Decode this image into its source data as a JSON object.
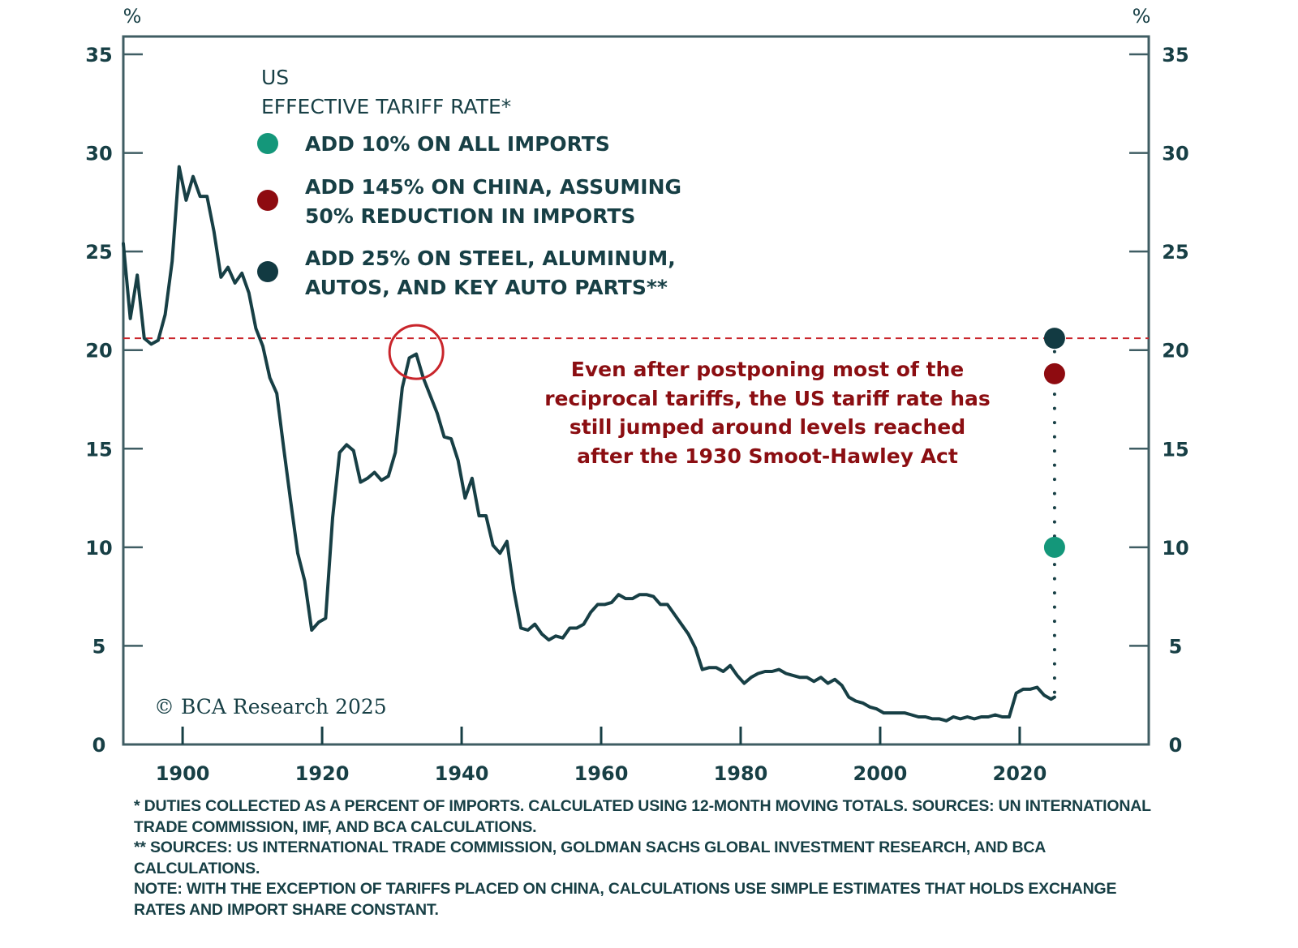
{
  "chart_data": {
    "type": "line",
    "title": "US EFFECTIVE TARIFF RATE*",
    "title_lines": [
      "US",
      "EFFECTIVE TARIFF RATE*"
    ],
    "ylabel_left": "%",
    "ylabel_right": "%",
    "xlabel": "",
    "xlim": [
      1891.5,
      2038.5
    ],
    "ylim": [
      0,
      35
    ],
    "x_ticks": [
      1900,
      1920,
      1940,
      1960,
      1980,
      2000,
      2020
    ],
    "x_tick_labels": [
      "1900",
      "1920",
      "1940",
      "1960",
      "1980",
      "2000",
      "2020"
    ],
    "y_ticks": [
      0,
      5,
      10,
      15,
      20,
      25,
      30,
      35
    ],
    "y_tick_labels": [
      "0",
      "5",
      "10",
      "15",
      "20",
      "25",
      "30",
      "35"
    ],
    "grid": false,
    "legend_position": "top-left",
    "series": [
      {
        "name": "US effective tariff rate",
        "color": "#173f45",
        "points": [
          [
            1891.5,
            25.4
          ],
          [
            1892.5,
            21.6
          ],
          [
            1893.5,
            23.8
          ],
          [
            1894.5,
            20.6
          ],
          [
            1895.5,
            20.3
          ],
          [
            1896.5,
            20.5
          ],
          [
            1897.5,
            21.8
          ],
          [
            1898.5,
            24.5
          ],
          [
            1899.5,
            29.3
          ],
          [
            1900.5,
            27.6
          ],
          [
            1901.5,
            28.8
          ],
          [
            1902.5,
            27.8
          ],
          [
            1903.5,
            27.8
          ],
          [
            1904.5,
            26.0
          ],
          [
            1905.5,
            23.7
          ],
          [
            1906.5,
            24.2
          ],
          [
            1907.5,
            23.4
          ],
          [
            1908.5,
            23.9
          ],
          [
            1909.5,
            22.9
          ],
          [
            1910.5,
            21.1
          ],
          [
            1911.5,
            20.2
          ],
          [
            1912.5,
            18.6
          ],
          [
            1913.5,
            17.8
          ],
          [
            1914.5,
            15.0
          ],
          [
            1915.5,
            12.3
          ],
          [
            1916.5,
            9.7
          ],
          [
            1917.5,
            8.3
          ],
          [
            1918.5,
            5.8
          ],
          [
            1919.5,
            6.2
          ],
          [
            1920.5,
            6.4
          ],
          [
            1921.5,
            11.5
          ],
          [
            1922.5,
            14.8
          ],
          [
            1923.5,
            15.2
          ],
          [
            1924.5,
            14.9
          ],
          [
            1925.5,
            13.3
          ],
          [
            1926.5,
            13.5
          ],
          [
            1927.5,
            13.8
          ],
          [
            1928.5,
            13.4
          ],
          [
            1929.5,
            13.6
          ],
          [
            1930.5,
            14.8
          ],
          [
            1931.5,
            18.1
          ],
          [
            1932.5,
            19.6
          ],
          [
            1933.5,
            19.8
          ],
          [
            1934.5,
            18.6
          ],
          [
            1935.5,
            17.7
          ],
          [
            1936.5,
            16.8
          ],
          [
            1937.5,
            15.6
          ],
          [
            1938.5,
            15.5
          ],
          [
            1939.5,
            14.4
          ],
          [
            1940.5,
            12.5
          ],
          [
            1941.5,
            13.5
          ],
          [
            1942.5,
            11.6
          ],
          [
            1943.5,
            11.6
          ],
          [
            1944.5,
            10.1
          ],
          [
            1945.5,
            9.7
          ],
          [
            1946.5,
            10.3
          ],
          [
            1947.5,
            7.8
          ],
          [
            1948.5,
            5.9
          ],
          [
            1949.5,
            5.8
          ],
          [
            1950.5,
            6.1
          ],
          [
            1951.5,
            5.6
          ],
          [
            1952.5,
            5.3
          ],
          [
            1953.5,
            5.5
          ],
          [
            1954.5,
            5.4
          ],
          [
            1955.5,
            5.9
          ],
          [
            1956.5,
            5.9
          ],
          [
            1957.5,
            6.1
          ],
          [
            1958.5,
            6.7
          ],
          [
            1959.5,
            7.1
          ],
          [
            1960.5,
            7.1
          ],
          [
            1961.5,
            7.2
          ],
          [
            1962.5,
            7.6
          ],
          [
            1963.5,
            7.4
          ],
          [
            1964.5,
            7.4
          ],
          [
            1965.5,
            7.6
          ],
          [
            1966.5,
            7.6
          ],
          [
            1967.5,
            7.5
          ],
          [
            1968.5,
            7.1
          ],
          [
            1969.5,
            7.1
          ],
          [
            1970.5,
            6.6
          ],
          [
            1971.5,
            6.1
          ],
          [
            1972.5,
            5.6
          ],
          [
            1973.5,
            4.9
          ],
          [
            1974.5,
            3.8
          ],
          [
            1975.5,
            3.9
          ],
          [
            1976.5,
            3.9
          ],
          [
            1977.5,
            3.7
          ],
          [
            1978.5,
            4.0
          ],
          [
            1979.5,
            3.5
          ],
          [
            1980.5,
            3.1
          ],
          [
            1981.5,
            3.4
          ],
          [
            1982.5,
            3.6
          ],
          [
            1983.5,
            3.7
          ],
          [
            1984.5,
            3.7
          ],
          [
            1985.5,
            3.8
          ],
          [
            1986.5,
            3.6
          ],
          [
            1987.5,
            3.5
          ],
          [
            1988.5,
            3.4
          ],
          [
            1989.5,
            3.4
          ],
          [
            1990.5,
            3.2
          ],
          [
            1991.5,
            3.4
          ],
          [
            1992.5,
            3.1
          ],
          [
            1993.5,
            3.3
          ],
          [
            1994.5,
            3.0
          ],
          [
            1995.5,
            2.4
          ],
          [
            1996.5,
            2.2
          ],
          [
            1997.5,
            2.1
          ],
          [
            1998.5,
            1.9
          ],
          [
            1999.5,
            1.8
          ],
          [
            2000.5,
            1.6
          ],
          [
            2001.5,
            1.6
          ],
          [
            2002.5,
            1.6
          ],
          [
            2003.5,
            1.6
          ],
          [
            2004.5,
            1.5
          ],
          [
            2005.5,
            1.4
          ],
          [
            2006.5,
            1.4
          ],
          [
            2007.5,
            1.3
          ],
          [
            2008.5,
            1.3
          ],
          [
            2009.5,
            1.2
          ],
          [
            2010.5,
            1.4
          ],
          [
            2011.5,
            1.3
          ],
          [
            2012.5,
            1.4
          ],
          [
            2013.5,
            1.3
          ],
          [
            2014.5,
            1.4
          ],
          [
            2015.5,
            1.4
          ],
          [
            2016.5,
            1.5
          ],
          [
            2017.5,
            1.4
          ],
          [
            2018.5,
            1.4
          ],
          [
            2019.5,
            2.6
          ],
          [
            2020.5,
            2.8
          ],
          [
            2021.5,
            2.8
          ],
          [
            2022.5,
            2.9
          ],
          [
            2023.5,
            2.5
          ],
          [
            2024.5,
            2.3
          ],
          [
            2025.0,
            2.4
          ]
        ]
      }
    ],
    "scenarios": [
      {
        "label": "ADD 10% ON ALL IMPORTS",
        "label_lines": [
          "ADD 10% ON ALL IMPORTS"
        ],
        "color": "#14977a",
        "x": 2025,
        "y": 10.0
      },
      {
        "label": "ADD 145% ON CHINA, ASSUMING 50% REDUCTION IN IMPORTS",
        "label_lines": [
          "ADD 145% ON CHINA, ASSUMING",
          "50% REDUCTION IN IMPORTS"
        ],
        "color": "#8e0b10",
        "x": 2025,
        "y": 18.8
      },
      {
        "label": "ADD 25% ON STEEL, ALUMINUM, AUTOS, AND KEY AUTO PARTS**",
        "label_lines": [
          "ADD 25% ON STEEL, ALUMINUM,",
          "AUTOS, AND KEY AUTO PARTS**"
        ],
        "color": "#123a42",
        "x": 2025,
        "y": 20.6
      }
    ],
    "reference_line": {
      "y": 20.6,
      "style": "dashed",
      "color": "#c9252b"
    },
    "highlight": {
      "x": 1933.5,
      "y": 19.9,
      "shape": "circle",
      "color": "#c9252b"
    },
    "annotations": [
      {
        "text": "Even after postponing most of the reciprocal tariffs, the US tariff rate has still jumped around levels reached after the 1930 Smoot-Hawley Act",
        "lines": [
          "Even after postponing most of the",
          "reciprocal tariffs, the US tariff rate has",
          "still jumped around levels reached",
          "after the 1930 Smoot-Hawley Act"
        ],
        "color": "#8b0e12"
      }
    ],
    "copyright": "© BCA Research 2025"
  },
  "footnotes": [
    "*  DUTIES COLLECTED AS A PERCENT OF IMPORTS. CALCULATED USING 12-MONTH MOVING TOTALS. SOURCES: UN INTERNATIONAL TRADE COMMISSION, IMF, AND BCA CALCULATIONS.",
    "** SOURCES: US INTERNATIONAL TRADE COMMISSION, GOLDMAN SACHS GLOBAL INVESTMENT RESEARCH, AND BCA CALCULATIONS.",
    "NOTE: WITH THE EXCEPTION OF TARIFFS PLACED ON CHINA, CALCULATIONS USE SIMPLE ESTIMATES THAT HOLDS EXCHANGE RATES AND IMPORT SHARE CONSTANT."
  ]
}
